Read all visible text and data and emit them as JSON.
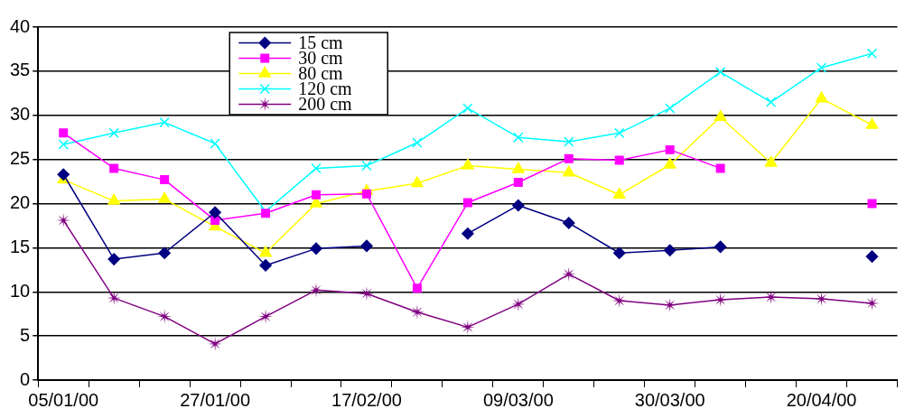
{
  "chart_data": {
    "type": "line",
    "categories": [
      "05/01/00",
      null,
      null,
      "27/01/00",
      null,
      null,
      "17/02/00",
      null,
      null,
      "09/03/00",
      null,
      null,
      "30/03/00",
      null,
      null,
      "20/04/00",
      null
    ],
    "ylim": [
      0,
      40
    ],
    "yticks": [
      0,
      5,
      10,
      15,
      20,
      25,
      30,
      35,
      40
    ],
    "grid": "y",
    "legend": "top left",
    "series": [
      {
        "name": "15 cm",
        "color": "#000080",
        "marker": "diamond",
        "values": [
          23.3,
          13.7,
          14.4,
          19,
          13,
          14.9,
          15.2,
          null,
          16.6,
          19.8,
          17.8,
          14.4,
          14.7,
          15.1,
          null,
          null,
          14.0
        ]
      },
      {
        "name": "30 cm",
        "color": "#ff00ff",
        "marker": "square",
        "values": [
          28,
          24,
          22.7,
          18.1,
          18.9,
          21,
          21.1,
          10.4,
          20.1,
          22.4,
          25.1,
          24.9,
          26.1,
          24,
          null,
          null,
          20
        ]
      },
      {
        "name": "80 cm",
        "color": "#ffff00",
        "marker": "triangle",
        "values": [
          22.7,
          20.3,
          20.5,
          17.4,
          14.4,
          20,
          21.4,
          22.3,
          24.3,
          23.9,
          23.5,
          21,
          24.4,
          29.8,
          24.6,
          31.9,
          28.9
        ]
      },
      {
        "name": "120 cm",
        "color": "#00ffff",
        "marker": "cross",
        "values": [
          26.7,
          28,
          29.2,
          26.8,
          19.1,
          24,
          24.3,
          26.9,
          30.8,
          27.5,
          27,
          28,
          30.8,
          34.9,
          31.5,
          35.4,
          37
        ]
      },
      {
        "name": "200 cm",
        "color": "#800080",
        "marker": "star",
        "values": [
          18.1,
          9.3,
          7.2,
          4.1,
          7.2,
          10.2,
          9.8,
          7.7,
          6,
          8.6,
          12,
          9,
          8.5,
          9.1,
          9.4,
          9.2,
          8.7
        ]
      }
    ]
  }
}
